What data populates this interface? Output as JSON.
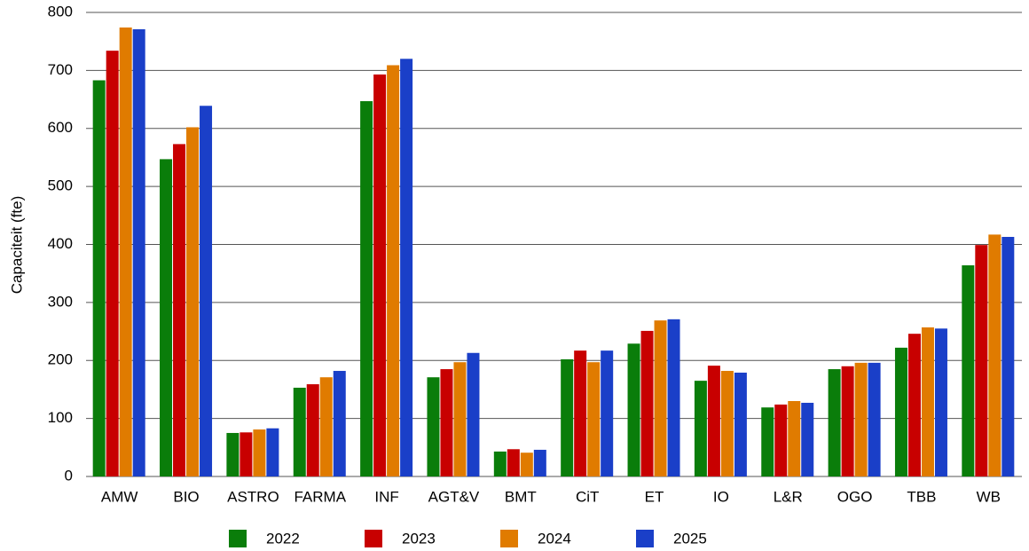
{
  "chart_data": {
    "type": "bar",
    "y_label": "Capaciteit (fte)",
    "categories": [
      "AMW",
      "BIO",
      "ASTRO",
      "FARMA",
      "INF",
      "AGT&V",
      "BMT",
      "CiT",
      "ET",
      "IO",
      "L&R",
      "OGO",
      "TBB",
      "WB"
    ],
    "series": [
      {
        "name": "2022",
        "color": "#0a7d0a",
        "values": [
          683,
          547,
          75,
          153,
          647,
          171,
          43,
          202,
          229,
          165,
          119,
          185,
          222,
          364
        ]
      },
      {
        "name": "2023",
        "color": "#c80000",
        "values": [
          734,
          573,
          76,
          159,
          693,
          185,
          47,
          217,
          251,
          191,
          124,
          190,
          246,
          399
        ]
      },
      {
        "name": "2024",
        "color": "#e07b00",
        "values": [
          774,
          602,
          81,
          171,
          709,
          197,
          41,
          197,
          269,
          182,
          130,
          196,
          257,
          417
        ]
      },
      {
        "name": "2025",
        "color": "#1a3fc8",
        "values": [
          771,
          639,
          83,
          182,
          720,
          213,
          46,
          217,
          271,
          179,
          127,
          196,
          255,
          413
        ]
      }
    ],
    "ylim": [
      0,
      800
    ],
    "yticks": [
      0,
      100,
      200,
      300,
      400,
      500,
      600,
      700,
      800
    ],
    "grid": true,
    "legend": "bottom"
  }
}
